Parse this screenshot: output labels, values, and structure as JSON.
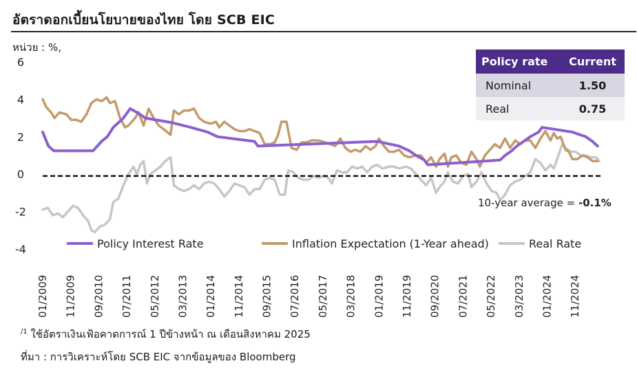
{
  "title": "อัตราดอกเบี้ยนโยบายของไทย โดย SCB EIC",
  "unit_label": "หน่วย : %,",
  "table": {
    "headers": [
      "Policy rate",
      "Current"
    ],
    "rows": [
      {
        "label": "Nominal",
        "value": "1.50"
      },
      {
        "label": "Real",
        "value": "0.75"
      }
    ]
  },
  "annotation": {
    "prefix": "10-year average = ",
    "value": "-0.1%"
  },
  "footnote": {
    "marker": "/1",
    "text": " ใช้อัตราเงินเฟ้อคาดการณ์ 1 ปีข้างหน้า ณ เดือนสิงหาคม 2025"
  },
  "source": "ที่มา : การวิเคราะห์โดย SCB EIC จากข้อมูลของ Bloomberg",
  "colors": {
    "policy": "#8b5fcf",
    "inflation": "#c49a6c",
    "real": "#c6c6c6",
    "header_bg": "#4d2c8a"
  },
  "chart_data": {
    "type": "line",
    "ylim": [
      -4,
      6
    ],
    "yticks": [
      -4,
      -2,
      0,
      2,
      4,
      6
    ],
    "xlim": [
      2009.0,
      2025.67
    ],
    "xtick_labels": [
      "01/2009",
      "11/2009",
      "09/2010",
      "07/2011",
      "05/2012",
      "03/2013",
      "01/2014",
      "11/2014",
      "09/2015",
      "07/2016",
      "05/2017",
      "03/2018",
      "01/2019",
      "11/2019",
      "09/2020",
      "07/2021",
      "05/2022",
      "03/2023",
      "01/2024",
      "11/2024"
    ],
    "reference_line": {
      "y": -0.1,
      "style": "dashed"
    },
    "legend_position": "bottom",
    "series": [
      {
        "name": "Policy Interest Rate",
        "points": [
          [
            2009.0,
            2.25
          ],
          [
            2009.17,
            1.5
          ],
          [
            2009.33,
            1.25
          ],
          [
            2010.5,
            1.25
          ],
          [
            2010.75,
            1.75
          ],
          [
            2010.92,
            2.0
          ],
          [
            2011.1,
            2.5
          ],
          [
            2011.4,
            3.0
          ],
          [
            2011.6,
            3.5
          ],
          [
            2011.85,
            3.25
          ],
          [
            2012.05,
            3.0
          ],
          [
            2012.85,
            2.75
          ],
          [
            2013.4,
            2.5
          ],
          [
            2013.9,
            2.25
          ],
          [
            2014.2,
            2.0
          ],
          [
            2015.3,
            1.75
          ],
          [
            2015.4,
            1.5
          ],
          [
            2018.95,
            1.75
          ],
          [
            2019.6,
            1.5
          ],
          [
            2019.9,
            1.25
          ],
          [
            2020.1,
            1.0
          ],
          [
            2020.35,
            0.75
          ],
          [
            2020.45,
            0.5
          ],
          [
            2022.6,
            0.75
          ],
          [
            2022.75,
            1.0
          ],
          [
            2022.95,
            1.25
          ],
          [
            2023.1,
            1.5
          ],
          [
            2023.3,
            1.75
          ],
          [
            2023.5,
            2.0
          ],
          [
            2023.75,
            2.25
          ],
          [
            2023.85,
            2.5
          ],
          [
            2024.75,
            2.25
          ],
          [
            2025.15,
            2.0
          ],
          [
            2025.35,
            1.75
          ],
          [
            2025.5,
            1.5
          ]
        ]
      },
      {
        "name": "Inflation Expectation (1-Year ahead)",
        "points": [
          [
            2009.0,
            4.0
          ],
          [
            2009.1,
            3.6
          ],
          [
            2009.25,
            3.3
          ],
          [
            2009.35,
            3.0
          ],
          [
            2009.5,
            3.3
          ],
          [
            2009.7,
            3.2
          ],
          [
            2009.85,
            2.9
          ],
          [
            2010.0,
            2.9
          ],
          [
            2010.15,
            2.8
          ],
          [
            2010.3,
            3.2
          ],
          [
            2010.45,
            3.8
          ],
          [
            2010.6,
            4.0
          ],
          [
            2010.75,
            3.9
          ],
          [
            2010.9,
            4.1
          ],
          [
            2011.0,
            3.8
          ],
          [
            2011.15,
            3.9
          ],
          [
            2011.3,
            3.0
          ],
          [
            2011.45,
            2.5
          ],
          [
            2011.55,
            2.6
          ],
          [
            2011.75,
            3.0
          ],
          [
            2011.85,
            3.3
          ],
          [
            2012.0,
            2.6
          ],
          [
            2012.15,
            3.5
          ],
          [
            2012.3,
            3.0
          ],
          [
            2012.45,
            2.6
          ],
          [
            2012.6,
            2.4
          ],
          [
            2012.8,
            2.1
          ],
          [
            2012.9,
            3.4
          ],
          [
            2013.05,
            3.2
          ],
          [
            2013.2,
            3.4
          ],
          [
            2013.35,
            3.4
          ],
          [
            2013.5,
            3.5
          ],
          [
            2013.65,
            3.0
          ],
          [
            2013.8,
            2.8
          ],
          [
            2014.0,
            2.7
          ],
          [
            2014.15,
            2.8
          ],
          [
            2014.25,
            2.5
          ],
          [
            2014.4,
            2.8
          ],
          [
            2014.55,
            2.6
          ],
          [
            2014.7,
            2.4
          ],
          [
            2014.85,
            2.3
          ],
          [
            2015.0,
            2.3
          ],
          [
            2015.15,
            2.4
          ],
          [
            2015.3,
            2.3
          ],
          [
            2015.45,
            2.2
          ],
          [
            2015.6,
            1.6
          ],
          [
            2015.75,
            1.6
          ],
          [
            2015.9,
            1.7
          ],
          [
            2016.0,
            2.1
          ],
          [
            2016.1,
            2.8
          ],
          [
            2016.25,
            2.8
          ],
          [
            2016.4,
            1.4
          ],
          [
            2016.55,
            1.3
          ],
          [
            2016.7,
            1.7
          ],
          [
            2016.85,
            1.7
          ],
          [
            2017.0,
            1.8
          ],
          [
            2017.2,
            1.8
          ],
          [
            2017.4,
            1.7
          ],
          [
            2017.55,
            1.6
          ],
          [
            2017.7,
            1.5
          ],
          [
            2017.85,
            1.9
          ],
          [
            2018.0,
            1.4
          ],
          [
            2018.15,
            1.2
          ],
          [
            2018.3,
            1.3
          ],
          [
            2018.45,
            1.2
          ],
          [
            2018.6,
            1.5
          ],
          [
            2018.75,
            1.3
          ],
          [
            2018.9,
            1.5
          ],
          [
            2019.0,
            1.9
          ],
          [
            2019.15,
            1.5
          ],
          [
            2019.3,
            1.2
          ],
          [
            2019.45,
            1.2
          ],
          [
            2019.6,
            1.3
          ],
          [
            2019.75,
            1.0
          ],
          [
            2019.9,
            0.9
          ],
          [
            2020.1,
            1.0
          ],
          [
            2020.25,
            1.0
          ],
          [
            2020.4,
            0.6
          ],
          [
            2020.55,
            0.9
          ],
          [
            2020.7,
            0.4
          ],
          [
            2020.8,
            0.8
          ],
          [
            2020.95,
            1.1
          ],
          [
            2021.05,
            0.4
          ],
          [
            2021.15,
            0.9
          ],
          [
            2021.3,
            1.0
          ],
          [
            2021.45,
            0.6
          ],
          [
            2021.6,
            0.5
          ],
          [
            2021.75,
            1.2
          ],
          [
            2021.9,
            0.8
          ],
          [
            2022.0,
            0.4
          ],
          [
            2022.15,
            1.0
          ],
          [
            2022.3,
            1.3
          ],
          [
            2022.45,
            1.6
          ],
          [
            2022.6,
            1.4
          ],
          [
            2022.75,
            1.9
          ],
          [
            2022.9,
            1.4
          ],
          [
            2023.05,
            1.8
          ],
          [
            2023.2,
            1.6
          ],
          [
            2023.35,
            1.8
          ],
          [
            2023.5,
            1.8
          ],
          [
            2023.65,
            1.4
          ],
          [
            2023.8,
            1.9
          ],
          [
            2023.95,
            2.3
          ],
          [
            2024.1,
            1.8
          ],
          [
            2024.2,
            2.2
          ],
          [
            2024.3,
            1.9
          ],
          [
            2024.4,
            2.0
          ],
          [
            2024.55,
            1.3
          ],
          [
            2024.65,
            1.2
          ],
          [
            2024.75,
            0.8
          ],
          [
            2024.9,
            0.8
          ],
          [
            2025.05,
            1.0
          ],
          [
            2025.2,
            0.9
          ],
          [
            2025.35,
            0.7
          ],
          [
            2025.5,
            0.7
          ]
        ]
      },
      {
        "name": "Real Rate",
        "points": [
          [
            2009.0,
            -1.9
          ],
          [
            2009.15,
            -1.8
          ],
          [
            2009.3,
            -2.2
          ],
          [
            2009.45,
            -2.1
          ],
          [
            2009.6,
            -2.3
          ],
          [
            2009.75,
            -2.0
          ],
          [
            2009.9,
            -1.7
          ],
          [
            2010.05,
            -1.8
          ],
          [
            2010.2,
            -2.2
          ],
          [
            2010.35,
            -2.5
          ],
          [
            2010.45,
            -3.0
          ],
          [
            2010.55,
            -3.1
          ],
          [
            2010.7,
            -2.8
          ],
          [
            2010.85,
            -2.7
          ],
          [
            2011.0,
            -2.4
          ],
          [
            2011.1,
            -1.5
          ],
          [
            2011.25,
            -1.3
          ],
          [
            2011.4,
            -0.6
          ],
          [
            2011.55,
            0.0
          ],
          [
            2011.7,
            0.4
          ],
          [
            2011.8,
            0.0
          ],
          [
            2011.9,
            0.5
          ],
          [
            2012.0,
            0.7
          ],
          [
            2012.1,
            -0.5
          ],
          [
            2012.2,
            0.0
          ],
          [
            2012.35,
            0.2
          ],
          [
            2012.5,
            0.4
          ],
          [
            2012.65,
            0.7
          ],
          [
            2012.8,
            0.9
          ],
          [
            2012.9,
            -0.6
          ],
          [
            2013.05,
            -0.8
          ],
          [
            2013.2,
            -0.9
          ],
          [
            2013.35,
            -0.8
          ],
          [
            2013.5,
            -0.6
          ],
          [
            2013.65,
            -0.8
          ],
          [
            2013.8,
            -0.5
          ],
          [
            2013.95,
            -0.4
          ],
          [
            2014.1,
            -0.5
          ],
          [
            2014.25,
            -0.8
          ],
          [
            2014.4,
            -1.2
          ],
          [
            2014.55,
            -0.9
          ],
          [
            2014.7,
            -0.5
          ],
          [
            2014.85,
            -0.6
          ],
          [
            2015.0,
            -0.7
          ],
          [
            2015.15,
            -1.1
          ],
          [
            2015.3,
            -0.8
          ],
          [
            2015.45,
            -0.8
          ],
          [
            2015.6,
            -0.3
          ],
          [
            2015.75,
            -0.2
          ],
          [
            2015.9,
            -0.3
          ],
          [
            2016.05,
            -1.1
          ],
          [
            2016.2,
            -1.1
          ],
          [
            2016.3,
            0.2
          ],
          [
            2016.45,
            0.1
          ],
          [
            2016.6,
            -0.2
          ],
          [
            2016.75,
            -0.3
          ],
          [
            2016.9,
            -0.3
          ],
          [
            2017.05,
            -0.1
          ],
          [
            2017.2,
            -0.2
          ],
          [
            2017.35,
            -0.1
          ],
          [
            2017.5,
            -0.2
          ],
          [
            2017.6,
            -0.5
          ],
          [
            2017.75,
            0.2
          ],
          [
            2017.9,
            0.1
          ],
          [
            2018.05,
            0.1
          ],
          [
            2018.2,
            0.4
          ],
          [
            2018.35,
            0.3
          ],
          [
            2018.5,
            0.4
          ],
          [
            2018.65,
            0.1
          ],
          [
            2018.8,
            0.4
          ],
          [
            2018.95,
            0.5
          ],
          [
            2019.1,
            0.3
          ],
          [
            2019.3,
            0.4
          ],
          [
            2019.45,
            0.4
          ],
          [
            2019.6,
            0.3
          ],
          [
            2019.8,
            0.4
          ],
          [
            2019.95,
            0.3
          ],
          [
            2020.1,
            0.0
          ],
          [
            2020.25,
            -0.3
          ],
          [
            2020.4,
            -0.6
          ],
          [
            2020.55,
            -0.2
          ],
          [
            2020.7,
            -1.0
          ],
          [
            2020.8,
            -0.7
          ],
          [
            2020.95,
            -0.4
          ],
          [
            2021.05,
            0.1
          ],
          [
            2021.2,
            -0.4
          ],
          [
            2021.35,
            -0.5
          ],
          [
            2021.5,
            -0.1
          ],
          [
            2021.65,
            0.0
          ],
          [
            2021.75,
            -0.7
          ],
          [
            2021.9,
            -0.4
          ],
          [
            2022.05,
            0.1
          ],
          [
            2022.2,
            -0.5
          ],
          [
            2022.35,
            -0.9
          ],
          [
            2022.5,
            -1.0
          ],
          [
            2022.6,
            -1.4
          ],
          [
            2022.75,
            -1.1
          ],
          [
            2022.9,
            -0.6
          ],
          [
            2023.05,
            -0.4
          ],
          [
            2023.2,
            -0.3
          ],
          [
            2023.35,
            -0.1
          ],
          [
            2023.5,
            0.1
          ],
          [
            2023.65,
            0.8
          ],
          [
            2023.8,
            0.6
          ],
          [
            2023.95,
            0.2
          ],
          [
            2024.1,
            0.5
          ],
          [
            2024.2,
            0.3
          ],
          [
            2024.3,
            0.8
          ],
          [
            2024.45,
            1.6
          ],
          [
            2024.55,
            1.4
          ],
          [
            2024.7,
            1.2
          ],
          [
            2024.85,
            1.2
          ],
          [
            2025.0,
            1.0
          ],
          [
            2025.15,
            1.0
          ],
          [
            2025.3,
            0.9
          ],
          [
            2025.45,
            0.9
          ],
          [
            2025.55,
            0.7
          ]
        ]
      }
    ]
  }
}
